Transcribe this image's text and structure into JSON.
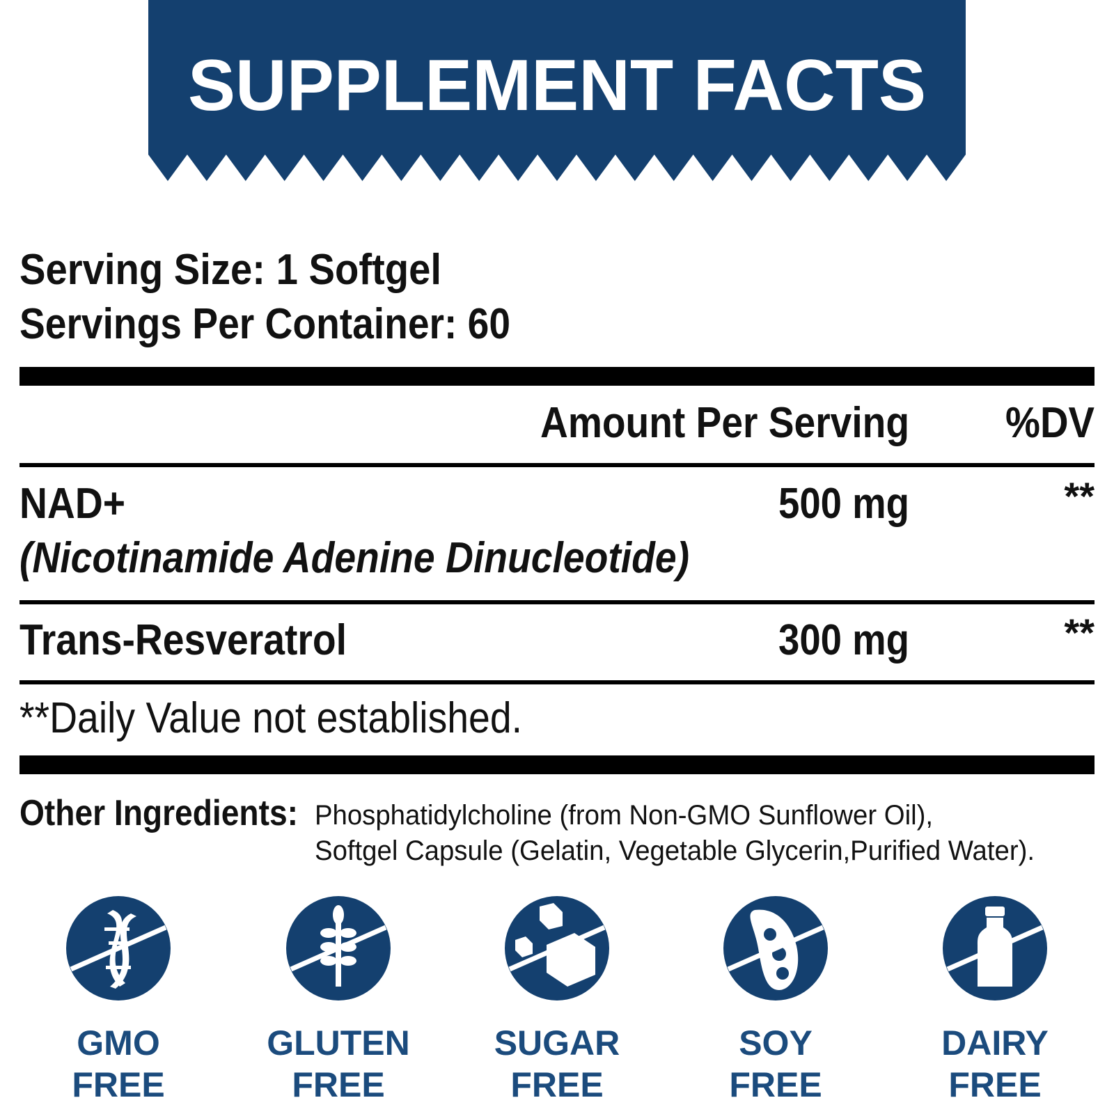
{
  "header": {
    "title": "SUPPLEMENT FACTS"
  },
  "serving": {
    "size": "Serving Size: 1 Softgel",
    "per_container": "Servings Per Container: 60"
  },
  "table": {
    "columns": [
      "Amount Per Serving",
      "%DV"
    ],
    "rows": [
      {
        "name": "NAD+",
        "subname": "(Nicotinamide Adenine Dinucleotide)",
        "amount": "500 mg",
        "dv": "**"
      },
      {
        "name": "Trans-Resveratrol",
        "amount": "300 mg",
        "dv": "**"
      }
    ],
    "footnote": "**Daily Value not established."
  },
  "other_ingredients": {
    "label": "Other Ingredients:",
    "lines": [
      "Phosphatidylcholine (from Non-GMO Sunflower Oil),",
      "Softgel Capsule (Gelatin, Vegetable Glycerin,Purified Water)."
    ]
  },
  "badges": [
    {
      "line1": "GMO",
      "line2": "FREE"
    },
    {
      "line1": "GLUTEN",
      "line2": "FREE"
    },
    {
      "line1": "SUGAR",
      "line2": "FREE"
    },
    {
      "line1": "SOY",
      "line2": "FREE"
    },
    {
      "line1": "DAIRY",
      "line2": "FREE"
    }
  ]
}
